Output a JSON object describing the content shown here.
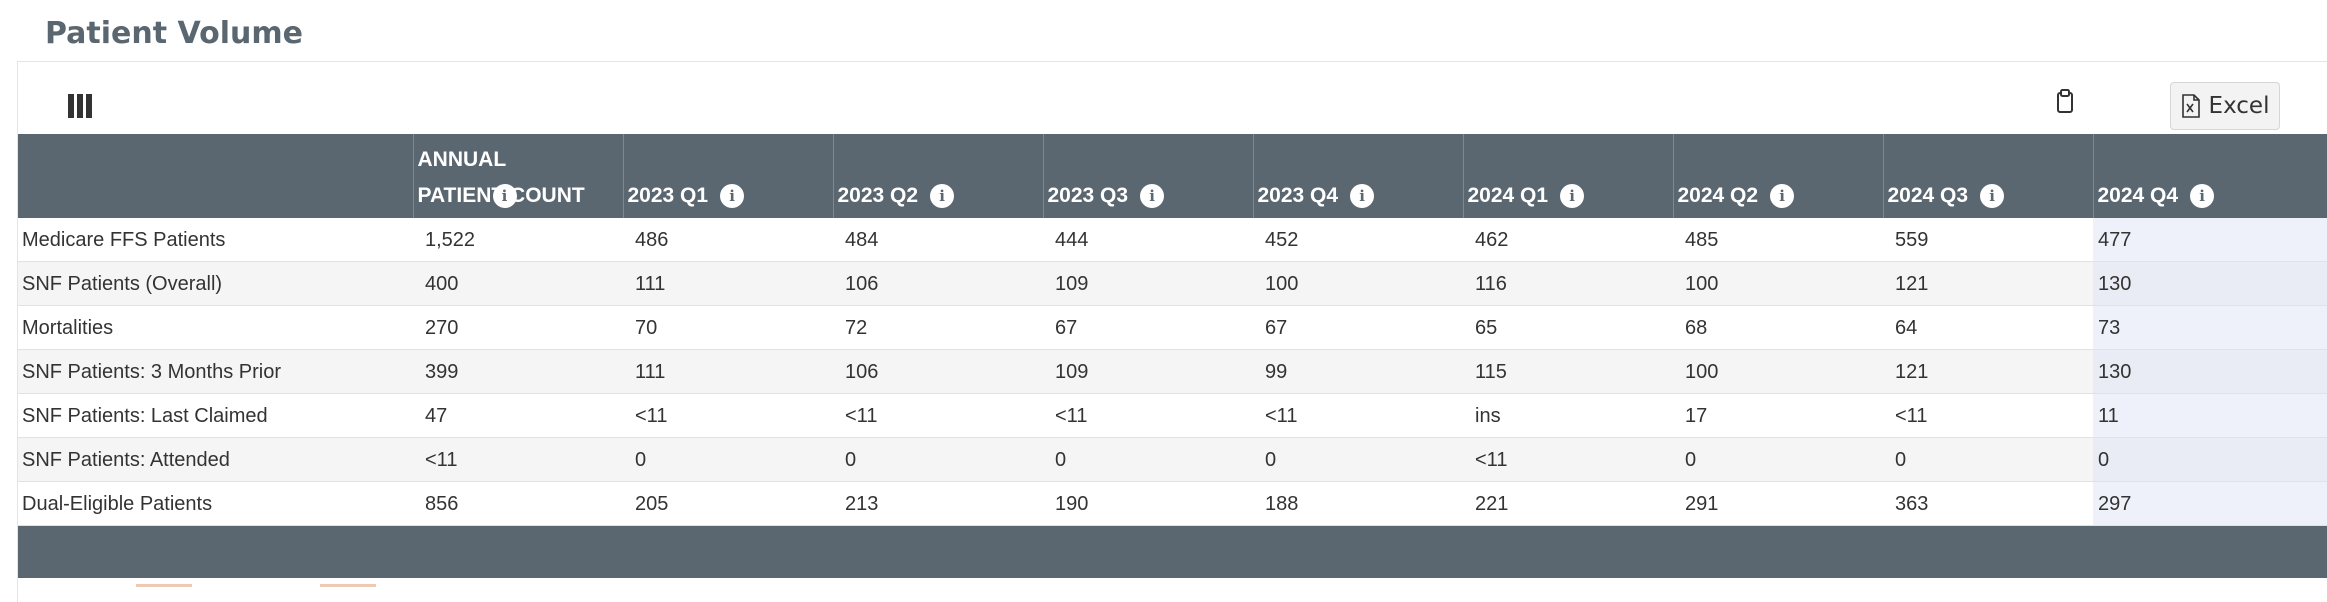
{
  "header": {
    "title": "Patient Volume"
  },
  "toolbar": {
    "columns_icon": "columns-icon",
    "clipboard_icon": "clipboard-icon",
    "excel_label": "Excel",
    "excel_icon": "excel-file-icon"
  },
  "table": {
    "columns": [
      {
        "label": ""
      },
      {
        "label": "ANNUAL PATIENT COUNT",
        "info": "i"
      },
      {
        "label": "2023 Q1",
        "info": "i"
      },
      {
        "label": "2023 Q2",
        "info": "i"
      },
      {
        "label": "2023 Q3",
        "info": "i"
      },
      {
        "label": "2023 Q4",
        "info": "i"
      },
      {
        "label": "2024 Q1",
        "info": "i"
      },
      {
        "label": "2024 Q2",
        "info": "i"
      },
      {
        "label": "2024 Q3",
        "info": "i"
      },
      {
        "label": "2024 Q4",
        "info": "i"
      }
    ],
    "rows": [
      {
        "cells": [
          "Medicare FFS Patients",
          "1,522",
          "486",
          "484",
          "444",
          "452",
          "462",
          "485",
          "559",
          "477"
        ]
      },
      {
        "cells": [
          "SNF Patients (Overall)",
          "400",
          "111",
          "106",
          "109",
          "100",
          "116",
          "100",
          "121",
          "130"
        ]
      },
      {
        "cells": [
          "Mortalities",
          "270",
          "70",
          "72",
          "67",
          "67",
          "65",
          "68",
          "64",
          "73"
        ]
      },
      {
        "cells": [
          "SNF Patients: 3 Months Prior",
          "399",
          "111",
          "106",
          "109",
          "99",
          "115",
          "100",
          "121",
          "130"
        ]
      },
      {
        "cells": [
          "SNF Patients: Last Claimed",
          "47",
          "<11",
          "<11",
          "<11",
          "<11",
          "ins",
          "17",
          "<11",
          "11"
        ]
      },
      {
        "cells": [
          "SNF Patients: Attended",
          "<11",
          "0",
          "0",
          "0",
          "0",
          "<11",
          "0",
          "0",
          "0"
        ]
      },
      {
        "cells": [
          "Dual-Eligible Patients",
          "856",
          "205",
          "213",
          "190",
          "188",
          "221",
          "291",
          "363",
          "297"
        ]
      }
    ]
  },
  "colors": {
    "header_bg": "#5b6770",
    "title": "#5b6770",
    "highlight_column": "#eef1f9"
  }
}
